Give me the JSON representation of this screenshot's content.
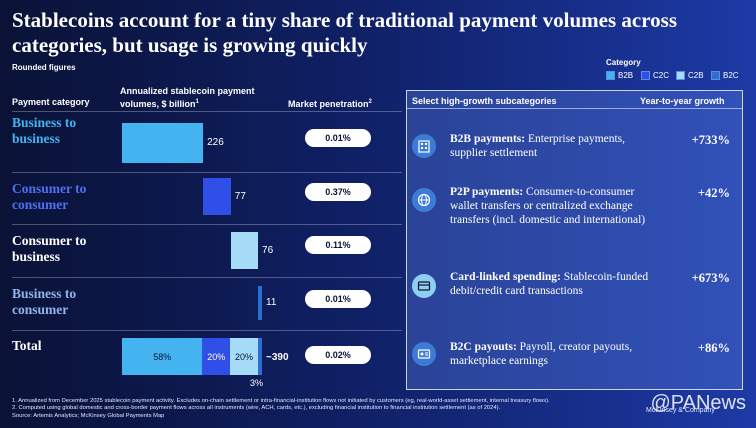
{
  "title": "Stablecoins account for a tiny share of traditional payment volumes across categories, but usage is growing quickly",
  "subnote": "Rounded figures",
  "headers": {
    "category": "Payment category",
    "volumes": "Annualized stablecoin payment volumes, $ billion",
    "volumes_sup": "1",
    "penetration": "Market penetration",
    "penetration_sup": "2",
    "subcategories": "Select high-growth subcategories",
    "growth": "Year-to-year growth"
  },
  "legend": {
    "title": "Category",
    "items": [
      {
        "label": "B2B",
        "color": "#43b4f0"
      },
      {
        "label": "C2C",
        "color": "#2f4fe8"
      },
      {
        "label": "C2B",
        "color": "#a6dcf7"
      },
      {
        "label": "B2C",
        "color": "#2d6fd0"
      }
    ]
  },
  "chart_data": {
    "type": "bar",
    "title": "Annualized stablecoin payment volumes, $ billion",
    "categories": [
      "Business to business",
      "Consumer to consumer",
      "Consumer to business",
      "Business to consumer"
    ],
    "values": [
      226,
      77,
      76,
      11
    ],
    "colors": [
      "#43b4f0",
      "#2f4fe8",
      "#a6dcf7",
      "#2d6fd0"
    ],
    "label_colors": [
      "#43b4f0",
      "#4f6ff0",
      "#ffffff",
      "#8fb4ee"
    ],
    "penetration": [
      "0.01%",
      "0.37%",
      "0.11%",
      "0.01%"
    ],
    "total": {
      "label": "Total",
      "value_label": "~390",
      "penetration": "0.02%",
      "segments": [
        {
          "name": "B2B",
          "share": 58,
          "label": "58%"
        },
        {
          "name": "C2C",
          "share": 20,
          "label": "20%"
        },
        {
          "name": "C2B",
          "share": 20,
          "label": "20%"
        },
        {
          "name": "B2C",
          "share": 3,
          "label": "3%"
        }
      ]
    }
  },
  "subcategories": [
    {
      "icon": "building-icon",
      "title": "B2B payments:",
      "text": "Enterprise payments, supplier settlement",
      "growth": "+733%"
    },
    {
      "icon": "globe-icon",
      "title": "P2P payments:",
      "text": "Consumer-to-consumer wallet transfers or centralized exchange transfers (incl. domestic and international)",
      "growth": "+42%"
    },
    {
      "icon": "card-icon",
      "title": "Card-linked spending:",
      "text": "Stablecoin-funded debit/credit card transactions",
      "growth": "+673%"
    },
    {
      "icon": "payroll-icon",
      "title": "B2C payouts:",
      "text": "Payroll, creator payouts, marketplace earnings",
      "growth": "+86%"
    }
  ],
  "footnotes": [
    "1.   Annualized from December 2025 stablecoin payment activity. Excludes on-chain settlement or intra-financial-institution flows not initiated by customers (eg, real-world-asset settlement, internal treasury flows).",
    "2.   Computed using global domestic and cross-border payment flows across all instruments (wire, ACH, cards, etc.), excluding financial institution to financial institution settlement (as of 2024).",
    "Source: Artemis Analytics; McKinsey Global Payments Map"
  ],
  "brand": "McKinsey & Company",
  "watermark": "@PANews"
}
